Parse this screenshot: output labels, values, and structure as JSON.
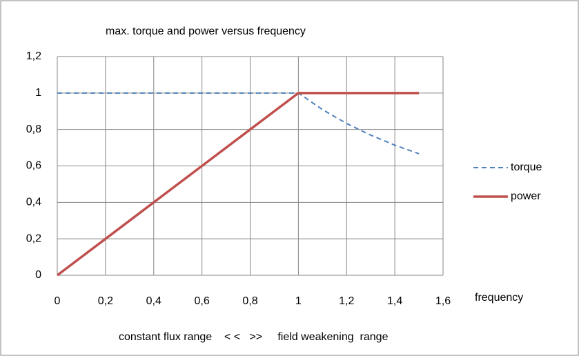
{
  "chart_data": {
    "type": "line",
    "title": "max. torque and power versus frequency",
    "x_label": "frequency",
    "annotation": "constant flux range    < <   >>     field weakening  range",
    "x": [
      0,
      0.2,
      0.4,
      0.6,
      0.8,
      1,
      1.1,
      1.2,
      1.3,
      1.4,
      1.5
    ],
    "series": [
      {
        "name": "torque",
        "color": "#4f81bd",
        "dashed": true,
        "values": [
          1,
          1,
          1,
          1,
          1,
          1,
          0.909,
          0.833,
          0.769,
          0.714,
          0.667
        ]
      },
      {
        "name": "power",
        "color": "#c0504d",
        "dashed": false,
        "values": [
          0,
          0.2,
          0.4,
          0.6,
          0.8,
          1,
          1,
          1,
          1,
          1,
          1
        ]
      }
    ],
    "xlim": [
      0,
      1.6
    ],
    "xticks": [
      0,
      {
        "value": 0.2,
        "label": "0,2"
      },
      {
        "value": 0.4,
        "label": "0,4"
      },
      {
        "value": 0.6,
        "label": "0,6"
      },
      {
        "value": 0.8,
        "label": "0,8"
      },
      1,
      {
        "value": 1.2,
        "label": "1,2"
      },
      {
        "value": 1.4,
        "label": "1,4"
      },
      {
        "value": 1.6,
        "label": "1,6"
      }
    ],
    "ylim": [
      0,
      1.2
    ],
    "yticks": [
      0,
      {
        "value": 0.2,
        "label": "0,2"
      },
      {
        "value": 0.4,
        "label": "0,4"
      },
      {
        "value": 0.6,
        "label": "0,6"
      },
      {
        "value": 0.8,
        "label": "0,8"
      },
      1,
      {
        "value": 1.2,
        "label": "1,2"
      }
    ],
    "grid": true,
    "legend": "right"
  }
}
